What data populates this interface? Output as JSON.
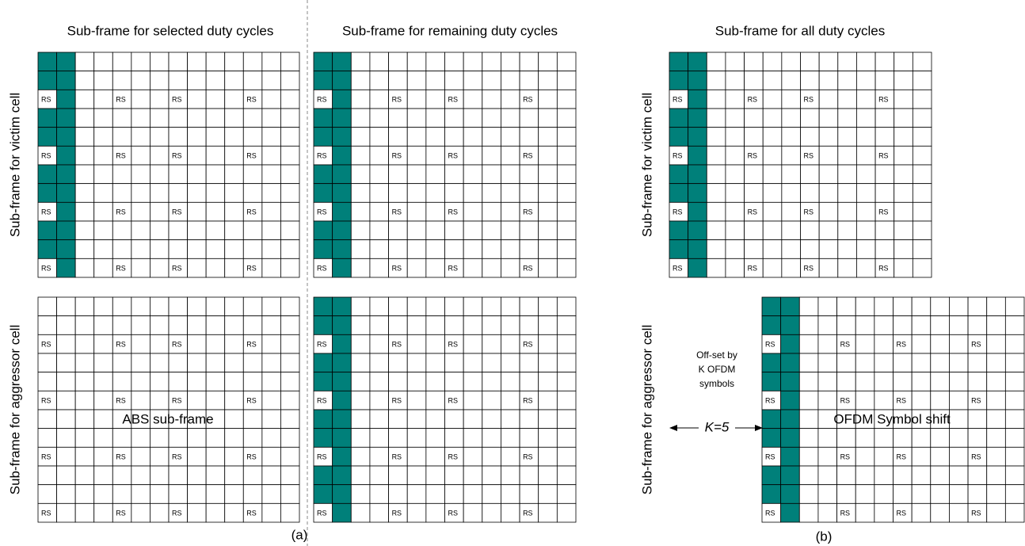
{
  "panel_a": {
    "caption": "(a)",
    "columns": [
      {
        "title": "Sub-frame for selected duty cycles"
      },
      {
        "title": "Sub-frame for remaining duty cycles"
      }
    ],
    "row_labels": [
      "Sub-frame for victim cell",
      "Sub-frame for aggressor cell"
    ],
    "annotation": "ABS sub-frame"
  },
  "panel_b": {
    "caption": "(b)",
    "title": "Sub-frame for all duty cycles",
    "row_labels": [
      "Sub-frame for victim cell",
      "Sub-frame for aggressor cell"
    ],
    "annotation": "OFDM Symbol shift",
    "offset_note": [
      "Off-set by",
      "K OFDM",
      "symbols"
    ],
    "shift": "K=5"
  },
  "cell_label": "RS"
}
